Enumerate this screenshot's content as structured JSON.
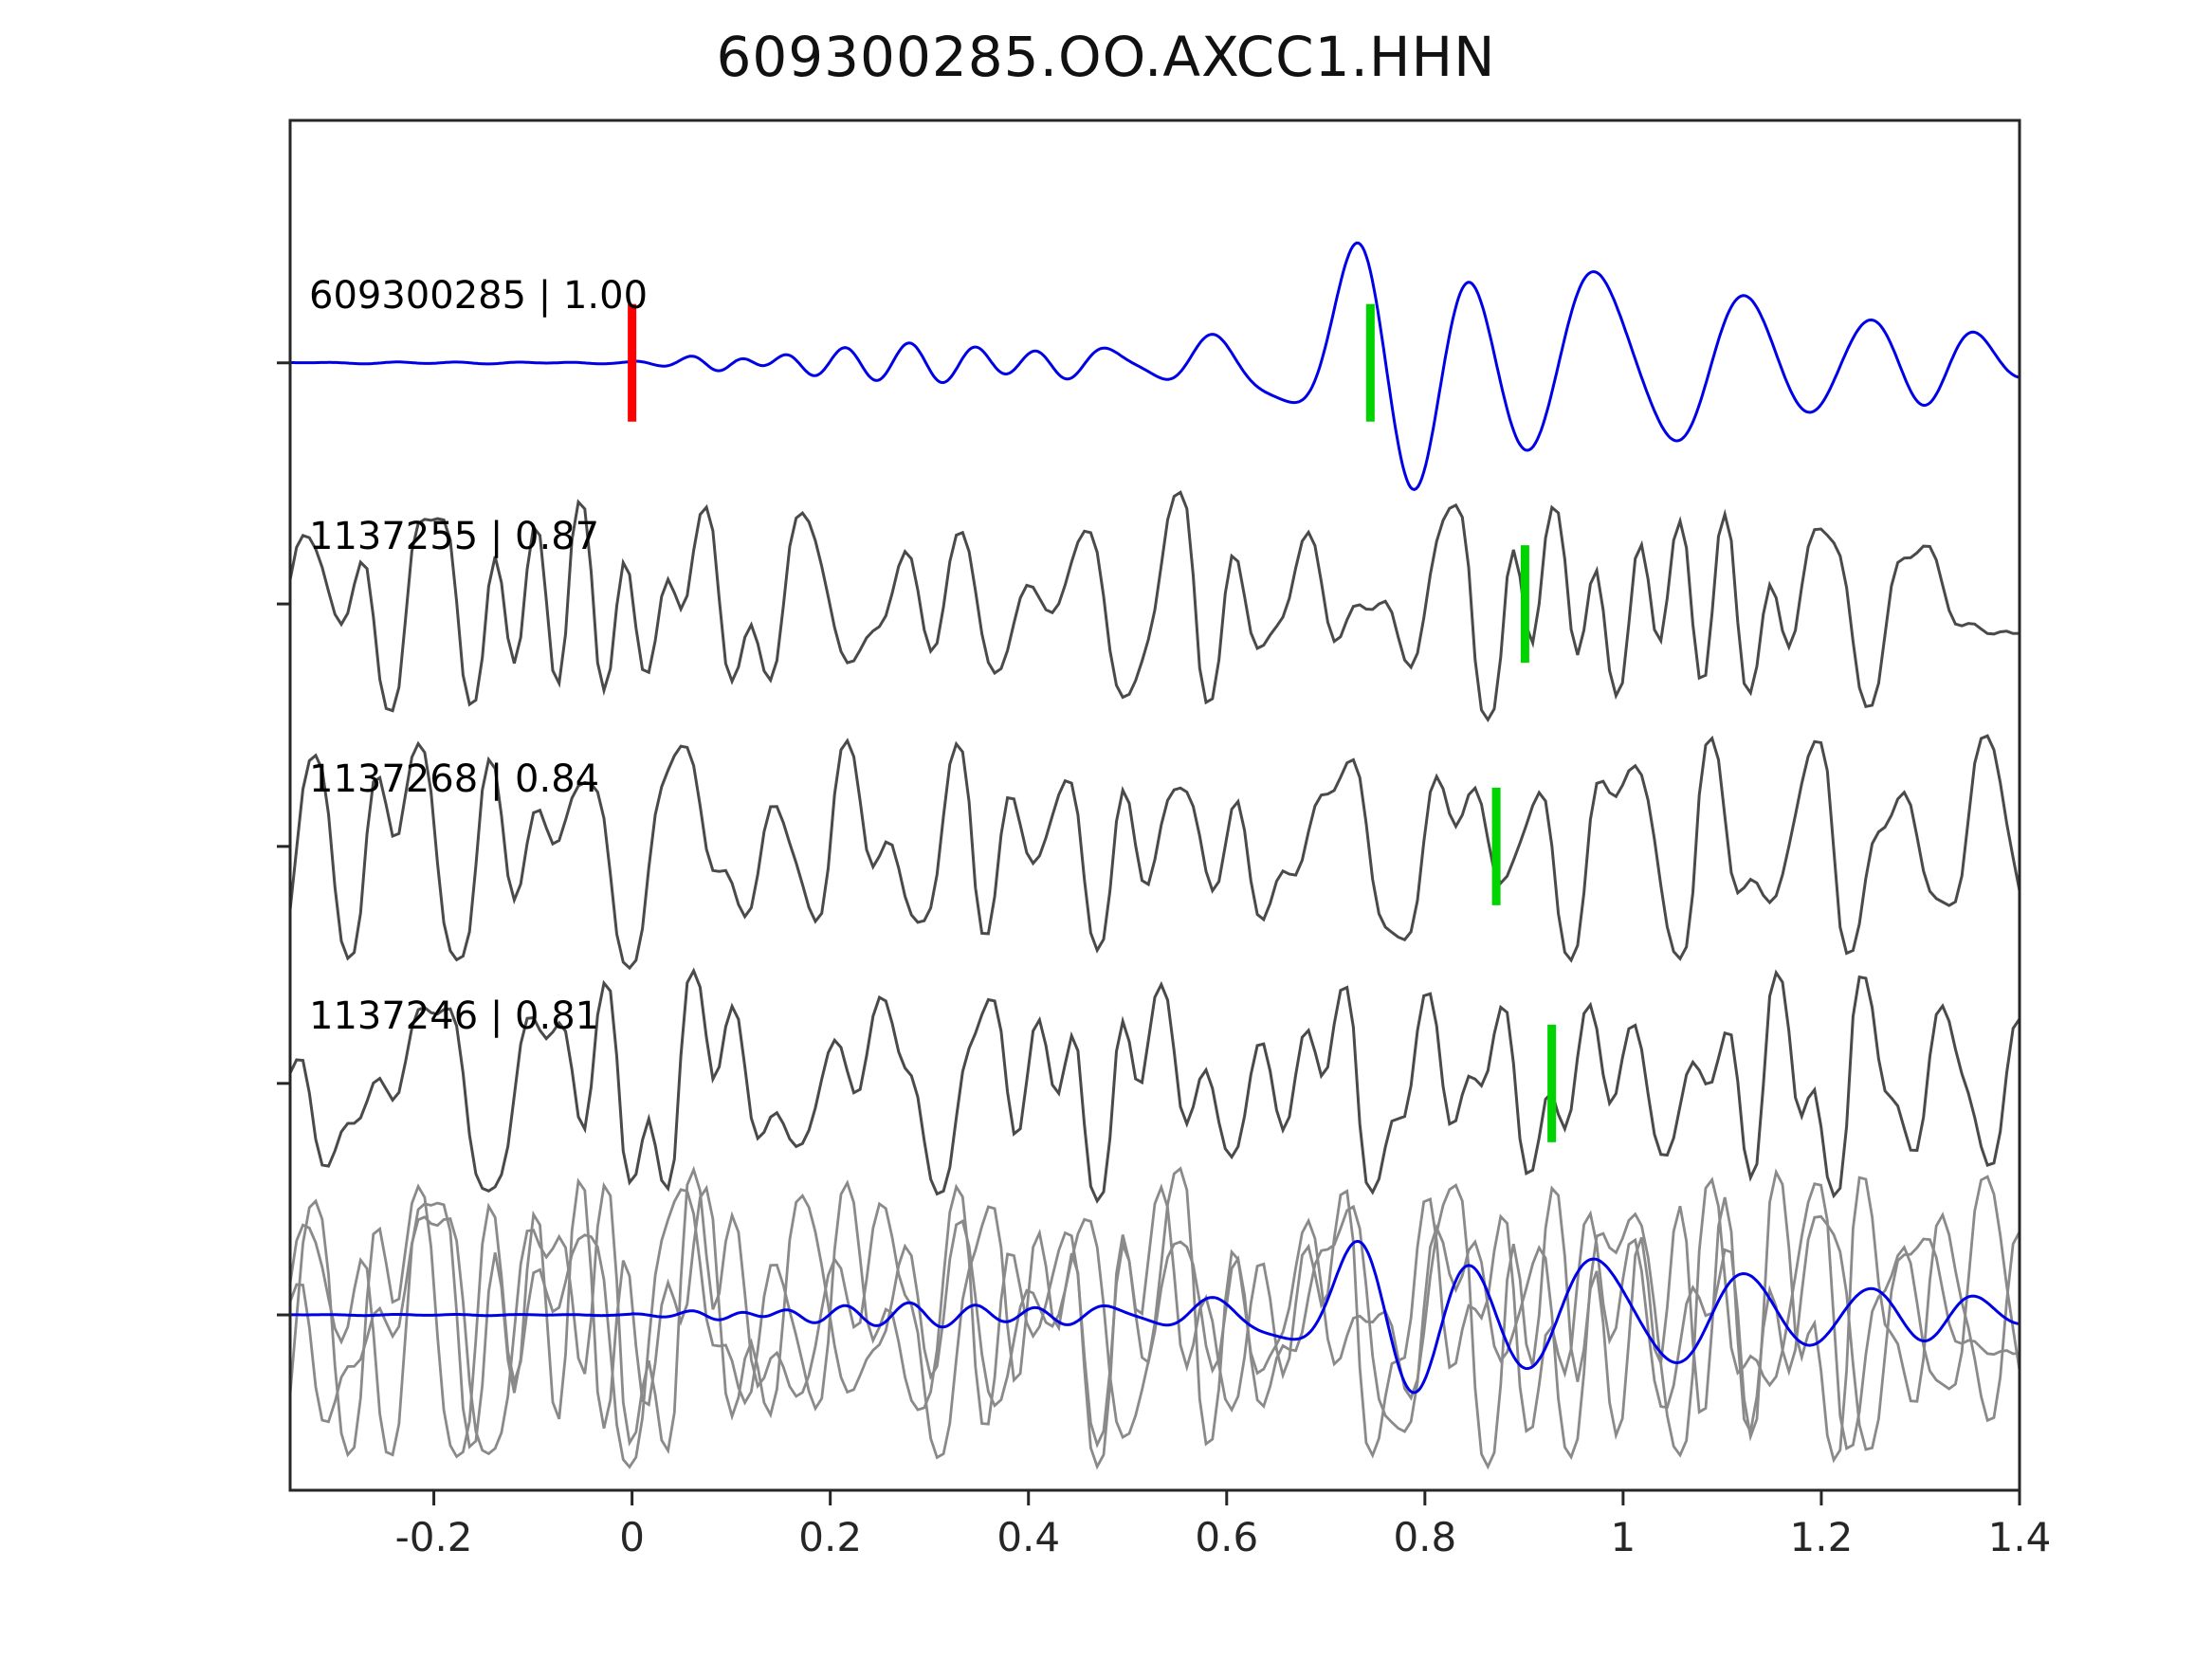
{
  "title": "609300285.OO.AXCC1.HHN",
  "chart_data": {
    "type": "line",
    "title": "609300285.OO.AXCC1.HHN",
    "xlabel": "",
    "ylabel": "",
    "xlim": [
      -0.345,
      1.4
    ],
    "grid": false,
    "legend": "none",
    "background": "#ffffff",
    "axis_color": "#262626",
    "x_ticks": [
      {
        "v": -0.2,
        "label": "-0.2"
      },
      {
        "v": 0,
        "label": "0"
      },
      {
        "v": 0.2,
        "label": "0.2"
      },
      {
        "v": 0.4,
        "label": "0.4"
      },
      {
        "v": 0.6,
        "label": "0.6"
      },
      {
        "v": 0.8,
        "label": "0.8"
      },
      {
        "v": 1,
        "label": "1"
      },
      {
        "v": 1.2,
        "label": "1.2"
      },
      {
        "v": 1.4,
        "label": "1.4"
      }
    ],
    "row_fractions": [
      0.177,
      0.353,
      0.53,
      0.703,
      0.872
    ],
    "marker_half_height": 62,
    "marker_stroke": 9,
    "traces": [
      {
        "id": "609300285",
        "label": "609300285 | 1.00",
        "correlation": 1.0,
        "kind": "template",
        "color": "#0000e6",
        "amp": 150,
        "seed": 7,
        "markers": [
          {
            "x": 0.0,
            "color": "#ff0000",
            "name": "template-onset-marker"
          },
          {
            "x": 0.745,
            "color": "#00d400",
            "name": "pick-marker"
          }
        ]
      },
      {
        "id": "1137255",
        "label": "1137255 | 0.87",
        "correlation": 0.87,
        "kind": "detection",
        "color": "#4a4a4a",
        "amp": 122,
        "seed": 21,
        "markers": [
          {
            "x": 0.901,
            "color": "#00d400",
            "name": "pick-marker"
          }
        ]
      },
      {
        "id": "1137268",
        "label": "1137268 | 0.84",
        "correlation": 0.84,
        "kind": "detection",
        "color": "#4a4a4a",
        "amp": 128,
        "seed": 33,
        "markers": [
          {
            "x": 0.872,
            "color": "#00d400",
            "name": "pick-marker"
          }
        ]
      },
      {
        "id": "1137246",
        "label": "1137246 | 0.81",
        "correlation": 0.81,
        "kind": "detection",
        "color": "#4a4a4a",
        "amp": 124,
        "seed": 45,
        "markers": [
          {
            "x": 0.928,
            "color": "#00d400",
            "name": "pick-marker"
          }
        ]
      },
      {
        "id": "stack-overlay",
        "label": "",
        "kind": "overlay",
        "gray_color": "#8a8a8a",
        "template_color": "#0000e6",
        "amp_gray": 160,
        "amp_template": 92,
        "gray_seeds": [
          21,
          33,
          45
        ],
        "markers": []
      }
    ],
    "template_wavelets": [
      {
        "t0": 0.1,
        "f": 18,
        "a": 0.06,
        "w": 0.06,
        "phase": 0
      },
      {
        "t0": 0.2,
        "f": 15,
        "a": 0.1,
        "w": 0.09,
        "phase": 0
      },
      {
        "t0": 0.33,
        "f": 14,
        "a": 0.13,
        "w": 0.1,
        "phase": 0
      },
      {
        "t0": 0.45,
        "f": 13,
        "a": 0.12,
        "w": 0.09,
        "phase": 0
      },
      {
        "t0": 0.56,
        "f": 12,
        "a": 0.16,
        "w": 0.08,
        "phase": 0
      },
      {
        "t0": 0.66,
        "f": 10,
        "a": 0.18,
        "w": 0.07,
        "phase": 0
      },
      {
        "t0": 0.76,
        "f": 8,
        "a": 1.0,
        "w": 0.095,
        "phase": 3.1
      },
      {
        "t0": 0.945,
        "f": 7,
        "a": 0.66,
        "w": 0.1,
        "phase": 0.5
      },
      {
        "t0": 1.09,
        "f": 8,
        "a": 0.45,
        "w": 0.09,
        "phase": 0
      },
      {
        "t0": 1.22,
        "f": 9,
        "a": 0.22,
        "w": 0.1,
        "phase": 0
      },
      {
        "t0": 1.33,
        "f": 10,
        "a": 0.2,
        "w": 0.09,
        "phase": 0
      }
    ]
  }
}
